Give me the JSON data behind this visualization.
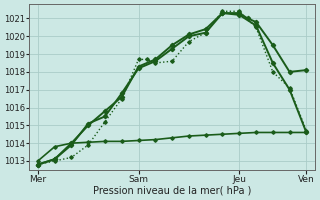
{
  "bg_color": "#cce8e4",
  "grid_color": "#aaccc8",
  "line_color": "#1a5c1a",
  "xlabel": "Pression niveau de la mer( hPa )",
  "ylim": [
    1012.5,
    1021.8
  ],
  "yticks": [
    1013,
    1014,
    1015,
    1016,
    1017,
    1018,
    1019,
    1020,
    1021
  ],
  "xtick_labels": [
    "Mer",
    "Sam",
    "Jeu",
    "Ven"
  ],
  "xtick_pos": [
    0,
    12,
    24,
    32
  ],
  "xlim": [
    -1,
    33
  ],
  "series": [
    {
      "x": [
        0,
        2,
        4,
        6,
        8,
        10,
        12,
        14,
        16,
        18,
        20,
        22,
        24,
        25,
        26,
        28,
        30,
        32
      ],
      "y": [
        1012.8,
        1013.1,
        1013.9,
        1015.1,
        1015.5,
        1016.8,
        1018.2,
        1018.6,
        1019.3,
        1020.0,
        1020.2,
        1021.3,
        1021.3,
        1021.0,
        1020.8,
        1019.5,
        1018.0,
        1018.1
      ],
      "lw": 1.4,
      "marker": "D",
      "ms": 2.2,
      "linestyle": "solid"
    },
    {
      "x": [
        0,
        2,
        4,
        6,
        8,
        10,
        12,
        14,
        16,
        18,
        20,
        22,
        24,
        26,
        28,
        30,
        32
      ],
      "y": [
        1012.8,
        1013.1,
        1014.0,
        1015.0,
        1015.8,
        1016.6,
        1018.3,
        1018.7,
        1019.5,
        1020.1,
        1020.4,
        1021.3,
        1021.2,
        1020.6,
        1018.5,
        1017.0,
        1014.6
      ],
      "lw": 1.4,
      "marker": "D",
      "ms": 2.2,
      "linestyle": "solid"
    },
    {
      "x": [
        0,
        2,
        4,
        6,
        8,
        10,
        12,
        14,
        16,
        18,
        20,
        22,
        24,
        26,
        28,
        30,
        32
      ],
      "y": [
        1013.0,
        1013.8,
        1014.0,
        1014.05,
        1014.1,
        1014.1,
        1014.15,
        1014.2,
        1014.3,
        1014.4,
        1014.45,
        1014.5,
        1014.55,
        1014.6,
        1014.6,
        1014.6,
        1014.6
      ],
      "lw": 1.2,
      "marker": "D",
      "ms": 1.8,
      "linestyle": "solid"
    },
    {
      "x": [
        0,
        2,
        4,
        6,
        8,
        10,
        12,
        13,
        14,
        16,
        18,
        20,
        22,
        24,
        26,
        28,
        30,
        32
      ],
      "y": [
        1012.8,
        1013.0,
        1013.2,
        1013.9,
        1015.2,
        1016.5,
        1018.7,
        1018.7,
        1018.5,
        1018.6,
        1019.7,
        1020.2,
        1021.4,
        1021.4,
        1020.5,
        1018.0,
        1017.1,
        1014.7
      ],
      "lw": 1.0,
      "marker": "D",
      "ms": 1.8,
      "linestyle": "dotted"
    }
  ]
}
